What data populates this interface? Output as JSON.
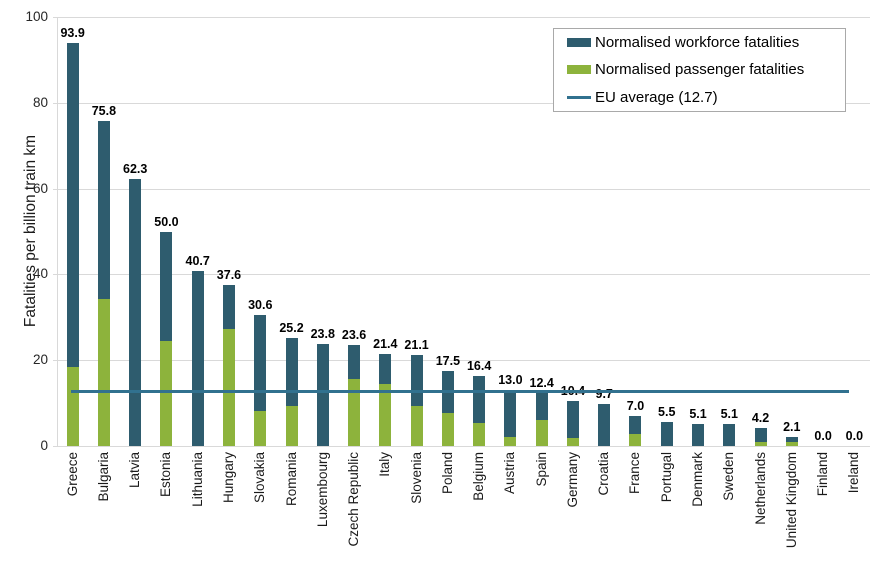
{
  "chart_data": {
    "type": "bar",
    "stacked": true,
    "title": "",
    "xlabel": "",
    "ylabel": "Fatalities per billion train km",
    "ylim": [
      0,
      100
    ],
    "yticks": [
      0,
      20,
      40,
      60,
      80,
      100
    ],
    "grid": true,
    "legend_position": "top-right",
    "stack_order_bottom_to_top": [
      "Normalised passenger fatalities",
      "Normalised workforce fatalities"
    ],
    "categories": [
      "Greece",
      "Bulgaria",
      "Latvia",
      "Estonia",
      "Lithuania",
      "Hungary",
      "Slovakia",
      "Romania",
      "Luxembourg",
      "Czech Republic",
      "Italy",
      "Slovenia",
      "Poland",
      "Belgium",
      "Austria",
      "Spain",
      "Germany",
      "Croatia",
      "France",
      "Portugal",
      "Denmark",
      "Sweden",
      "Netherlands",
      "United Kingdom",
      "Finland",
      "Ireland"
    ],
    "totals": [
      93.9,
      75.8,
      62.3,
      50.0,
      40.7,
      37.6,
      30.6,
      25.2,
      23.8,
      23.6,
      21.4,
      21.1,
      17.5,
      16.4,
      13.0,
      12.4,
      10.4,
      9.7,
      7.0,
      5.5,
      5.1,
      5.1,
      4.2,
      2.1,
      0.0,
      0.0
    ],
    "total_labels": [
      "93.9",
      "75.8",
      "62.3",
      "50.0",
      "40.7",
      "37.6",
      "30.6",
      "25.2",
      "23.8",
      "23.6",
      "21.4",
      "21.1",
      "17.5",
      "16.4",
      "13.0",
      "12.4",
      "10.4",
      "9.7",
      "7.0",
      "5.5",
      "5.1",
      "5.1",
      "4.2",
      "2.1",
      "0.0",
      "0.0"
    ],
    "series": [
      {
        "name": "Normalised workforce fatalities",
        "color": "#2E5C6E",
        "values": [
          75.6,
          41.6,
          62.3,
          25.5,
          40.7,
          10.3,
          22.4,
          15.9,
          23.8,
          7.9,
          6.9,
          11.8,
          9.7,
          11.0,
          10.9,
          6.3,
          8.5,
          9.7,
          4.1,
          5.5,
          5.1,
          5.1,
          3.2,
          1.1,
          0.0,
          0.0
        ]
      },
      {
        "name": "Normalised passenger fatalities",
        "color": "#8DB33C",
        "values": [
          18.3,
          34.2,
          0.0,
          24.5,
          0.0,
          27.3,
          8.2,
          9.3,
          0.0,
          15.7,
          14.5,
          9.3,
          7.8,
          5.4,
          2.1,
          6.1,
          1.9,
          0.0,
          2.9,
          0.0,
          0.0,
          0.0,
          1.0,
          1.0,
          0.0,
          0.0
        ]
      }
    ],
    "eu_average": {
      "label": "EU average (12.7)",
      "value": 12.7,
      "color": "#31718F"
    },
    "colors": {
      "gridline": "#d9d9d9",
      "text": "#1a1a1a",
      "value_label": "#000000"
    }
  }
}
